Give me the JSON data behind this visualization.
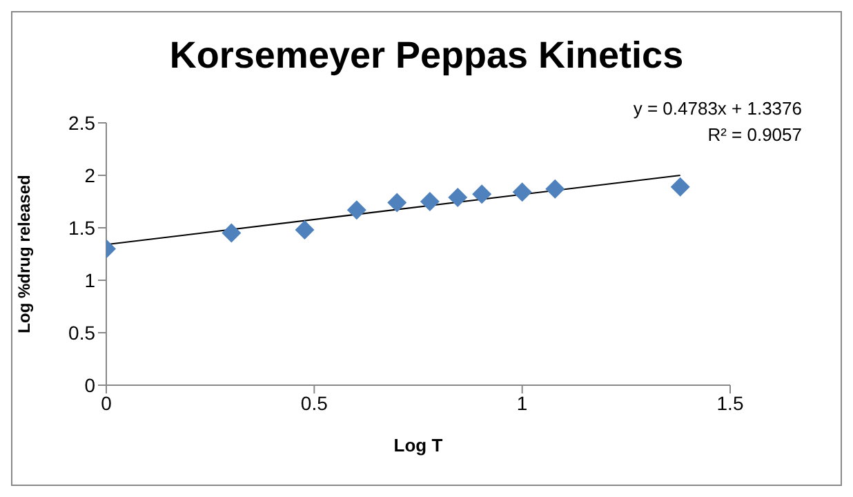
{
  "chart_data": {
    "type": "scatter",
    "title": "Korsemeyer Peppas Kinetics",
    "xlabel": "Log T",
    "ylabel": "Log %drug released",
    "x": [
      0,
      0.301,
      0.477,
      0.602,
      0.699,
      0.778,
      0.845,
      0.903,
      1.0,
      1.079,
      1.38
    ],
    "series": [
      {
        "color": "#4f81bd",
        "values": [
          1.3,
          1.45,
          1.48,
          1.67,
          1.74,
          1.75,
          1.79,
          1.82,
          1.84,
          1.87,
          1.89
        ]
      },
      {
        "type": "line",
        "color": "#000000",
        "x": [
          0,
          1.38
        ],
        "values": [
          1.34,
          2.0
        ],
        "marker": "none"
      }
    ],
    "xlim": [
      0,
      1.5
    ],
    "xticks": [
      0,
      0.5,
      1,
      1.5
    ],
    "ylim": [
      0,
      2.5
    ],
    "yticks": [
      0,
      0.5,
      1,
      1.5,
      2,
      2.5
    ],
    "grid": false,
    "legend": false,
    "marker": "diamond",
    "annotations": [
      "y = 0.4783x + 1.3376",
      "R² = 0.9057"
    ]
  }
}
